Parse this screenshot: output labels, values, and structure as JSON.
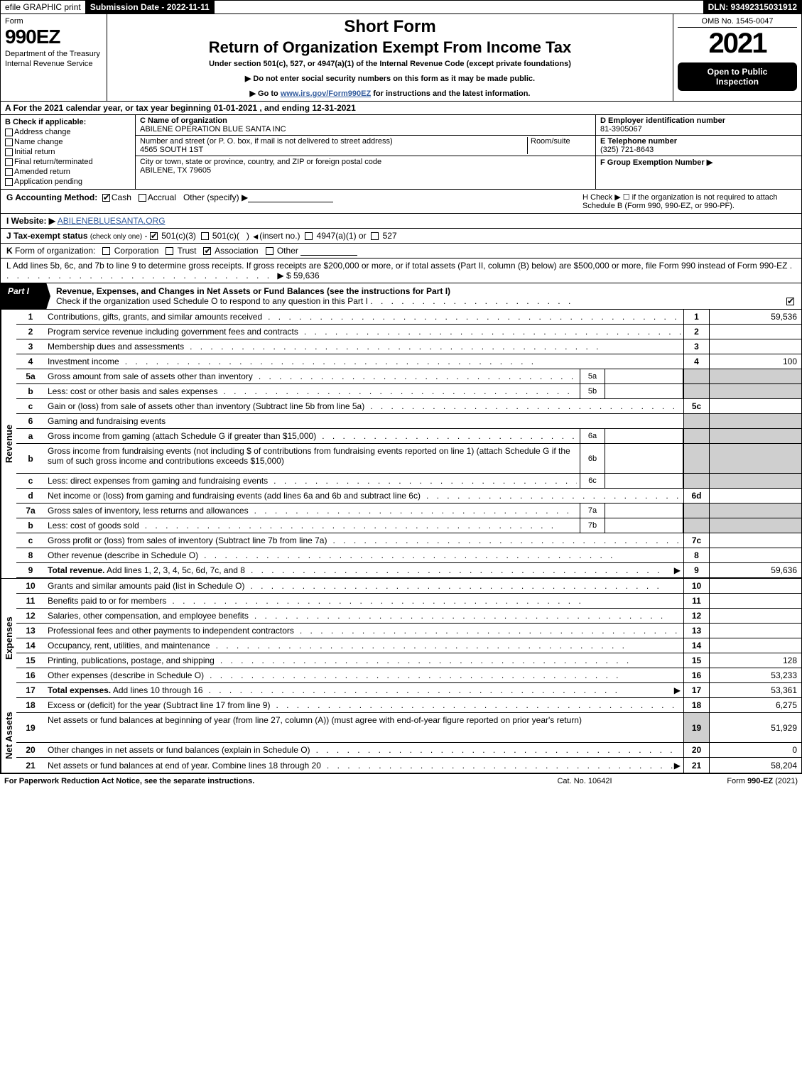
{
  "topbar": {
    "efile": "efile GRAPHIC print",
    "submission": "Submission Date - 2022-11-11",
    "dln": "DLN: 93492315031912"
  },
  "header": {
    "form_label": "Form",
    "form_no": "990EZ",
    "dept1": "Department of the Treasury",
    "dept2": "Internal Revenue Service",
    "short": "Short Form",
    "return": "Return of Organization Exempt From Income Tax",
    "under": "Under section 501(c), 527, or 4947(a)(1) of the Internal Revenue Code (except private foundations)",
    "note1": "▶ Do not enter social security numbers on this form as it may be made public.",
    "note2_pre": "▶ Go to ",
    "note2_link": "www.irs.gov/Form990EZ",
    "note2_post": " for instructions and the latest information.",
    "omb": "OMB No. 1545-0047",
    "year": "2021",
    "badge1": "Open to Public",
    "badge2": "Inspection"
  },
  "lineA": "A  For the 2021 calendar year, or tax year beginning 01-01-2021 , and ending 12-31-2021",
  "boxB": {
    "hdr": "B  Check if applicable:",
    "items": [
      "Address change",
      "Name change",
      "Initial return",
      "Final return/terminated",
      "Amended return",
      "Application pending"
    ]
  },
  "boxC": {
    "name_lab": "C Name of organization",
    "name": "ABILENE OPERATION BLUE SANTA INC",
    "addr_lab": "Number and street (or P. O. box, if mail is not delivered to street address)",
    "room_lab": "Room/suite",
    "addr": "4565 SOUTH 1ST",
    "city_lab": "City or town, state or province, country, and ZIP or foreign postal code",
    "city": "ABILENE, TX  79605"
  },
  "boxD": {
    "ein_lab": "D Employer identification number",
    "ein": "81-3905067",
    "tel_lab": "E Telephone number",
    "tel": "(325) 721-8643",
    "grp_lab": "F Group Exemption Number  ▶"
  },
  "lineG": {
    "g": "G Accounting Method:",
    "cash": "Cash",
    "accrual": "Accrual",
    "other": "Other (specify) ▶",
    "h": "H  Check ▶  ☐  if the organization is not required to attach Schedule B (Form 990, 990-EZ, or 990-PF)."
  },
  "lineI": {
    "lab": "I Website: ▶",
    "val": "ABILENEBLUESANTA.ORG"
  },
  "lineJ": "J Tax-exempt status (check only one) -  ☑ 501(c)(3)  ☐ 501(c)(  ) ◀ (insert no.)  ☐ 4947(a)(1) or  ☐ 527",
  "lineK": "K Form of organization:   ☐ Corporation   ☐ Trust   ☑ Association   ☐ Other",
  "lineL": {
    "txt": "L Add lines 5b, 6c, and 7b to line 9 to determine gross receipts. If gross receipts are $200,000 or more, or if total assets (Part II, column (B) below) are $500,000 or more, file Form 990 instead of Form 990-EZ",
    "amt": "▶ $ 59,636"
  },
  "part1": {
    "tag": "Part I",
    "title": "Revenue, Expenses, and Changes in Net Assets or Fund Balances (see the instructions for Part I)",
    "sub": "Check if the organization used Schedule O to respond to any question in this Part I"
  },
  "sections": {
    "revenue_label": "Revenue",
    "expenses_label": "Expenses",
    "netassets_label": "Net Assets"
  },
  "rows": [
    {
      "n": "1",
      "d": "Contributions, gifts, grants, and similar amounts received",
      "ln": "1",
      "v": "59,536"
    },
    {
      "n": "2",
      "d": "Program service revenue including government fees and contracts",
      "ln": "2",
      "v": ""
    },
    {
      "n": "3",
      "d": "Membership dues and assessments",
      "ln": "3",
      "v": ""
    },
    {
      "n": "4",
      "d": "Investment income",
      "ln": "4",
      "v": "100"
    },
    {
      "n": "5a",
      "d": "Gross amount from sale of assets other than inventory",
      "inL": "5a",
      "grey": true
    },
    {
      "n": "b",
      "d": "Less: cost or other basis and sales expenses",
      "inL": "5b",
      "grey": true
    },
    {
      "n": "c",
      "d": "Gain or (loss) from sale of assets other than inventory (Subtract line 5b from line 5a)",
      "ln": "5c",
      "v": ""
    },
    {
      "n": "6",
      "d": "Gaming and fundraising events",
      "grey": true,
      "noln": true
    },
    {
      "n": "a",
      "d": "Gross income from gaming (attach Schedule G if greater than $15,000)",
      "inL": "6a",
      "grey": true
    },
    {
      "n": "b",
      "d": "Gross income from fundraising events (not including $                      of contributions from fundraising events reported on line 1) (attach Schedule G if the sum of such gross income and contributions exceeds $15,000)",
      "inL": "6b",
      "grey": true,
      "tall": true
    },
    {
      "n": "c",
      "d": "Less: direct expenses from gaming and fundraising events",
      "inL": "6c",
      "grey": true
    },
    {
      "n": "d",
      "d": "Net income or (loss) from gaming and fundraising events (add lines 6a and 6b and subtract line 6c)",
      "ln": "6d",
      "v": ""
    },
    {
      "n": "7a",
      "d": "Gross sales of inventory, less returns and allowances",
      "inL": "7a",
      "grey": true
    },
    {
      "n": "b",
      "d": "Less: cost of goods sold",
      "inL": "7b",
      "grey": true
    },
    {
      "n": "c",
      "d": "Gross profit or (loss) from sales of inventory (Subtract line 7b from line 7a)",
      "ln": "7c",
      "v": ""
    },
    {
      "n": "8",
      "d": "Other revenue (describe in Schedule O)",
      "ln": "8",
      "v": ""
    },
    {
      "n": "9",
      "d": "Total revenue. Add lines 1, 2, 3, 4, 5c, 6d, 7c, and 8",
      "ln": "9",
      "v": "59,636",
      "bold": true,
      "arrow": true
    }
  ],
  "exp_rows": [
    {
      "n": "10",
      "d": "Grants and similar amounts paid (list in Schedule O)",
      "ln": "10",
      "v": ""
    },
    {
      "n": "11",
      "d": "Benefits paid to or for members",
      "ln": "11",
      "v": ""
    },
    {
      "n": "12",
      "d": "Salaries, other compensation, and employee benefits",
      "ln": "12",
      "v": ""
    },
    {
      "n": "13",
      "d": "Professional fees and other payments to independent contractors",
      "ln": "13",
      "v": ""
    },
    {
      "n": "14",
      "d": "Occupancy, rent, utilities, and maintenance",
      "ln": "14",
      "v": ""
    },
    {
      "n": "15",
      "d": "Printing, publications, postage, and shipping",
      "ln": "15",
      "v": "128"
    },
    {
      "n": "16",
      "d": "Other expenses (describe in Schedule O)",
      "ln": "16",
      "v": "53,233"
    },
    {
      "n": "17",
      "d": "Total expenses. Add lines 10 through 16",
      "ln": "17",
      "v": "53,361",
      "bold": true,
      "arrow": true
    }
  ],
  "na_rows": [
    {
      "n": "18",
      "d": "Excess or (deficit) for the year (Subtract line 17 from line 9)",
      "ln": "18",
      "v": "6,275"
    },
    {
      "n": "19",
      "d": "Net assets or fund balances at beginning of year (from line 27, column (A)) (must agree with end-of-year figure reported on prior year's return)",
      "ln": "19",
      "v": "51,929",
      "tall": true,
      "greyTop": true
    },
    {
      "n": "20",
      "d": "Other changes in net assets or fund balances (explain in Schedule O)",
      "ln": "20",
      "v": "0"
    },
    {
      "n": "21",
      "d": "Net assets or fund balances at end of year. Combine lines 18 through 20",
      "ln": "21",
      "v": "58,204",
      "arrow": true
    }
  ],
  "footer": {
    "l": "For Paperwork Reduction Act Notice, see the separate instructions.",
    "c": "Cat. No. 10642I",
    "r": "Form 990-EZ (2021)"
  },
  "dots": ". . . . . . . . . . . . . . . . . . . . . . . . . . . . . . . . . . . . . . . ."
}
